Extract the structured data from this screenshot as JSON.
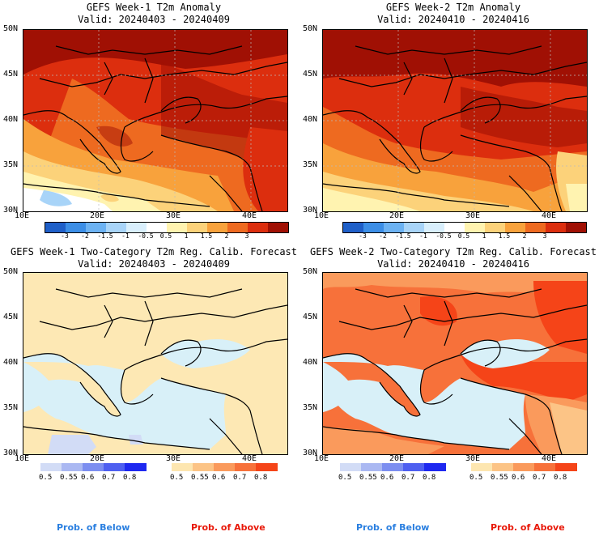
{
  "panels": [
    {
      "title_line1": "GEFS Week-1 T2m Anomaly",
      "title_line2": "Valid: 20240403 - 20240409"
    },
    {
      "title_line1": "GEFS Week-2 T2m Anomaly",
      "title_line2": "Valid: 20240410 - 20240416"
    },
    {
      "title_line1": "GEFS Week-1 Two-Category T2m Reg. Calib. Forecast",
      "title_line2": "Valid: 20240403 - 20240409"
    },
    {
      "title_line1": "GEFS Week-2 Two-Category T2m Reg. Calib. Forecast",
      "title_line2": "Valid: 20240410 - 20240416"
    }
  ],
  "lat_labels": [
    "50N",
    "45N",
    "40N",
    "35N",
    "30N"
  ],
  "lon_labels": [
    "10E",
    "20E",
    "30E",
    "40E"
  ],
  "anomaly_colorbar": {
    "labels": [
      "-3",
      "-2",
      "-1.5",
      "-1",
      "-0.5",
      "0.5",
      "1",
      "1.5",
      "2",
      "3"
    ],
    "colors": [
      "#1f5fc8",
      "#3c8ee6",
      "#6cb2f2",
      "#a8d4f8",
      "#d9effc",
      "#ffffff",
      "#fff3b0",
      "#fcd27a",
      "#f8a23c",
      "#ee6a20",
      "#dc2e0e",
      "#a01004"
    ]
  },
  "prob_colorbar": {
    "labels": [
      "0.5",
      "0.55",
      "0.6",
      "0.7",
      "0.8"
    ],
    "below_colors": [
      "#d2dcf6",
      "#aab8f2",
      "#7c8ef0",
      "#4e5ff0",
      "#1e28f0"
    ],
    "above_colors": [
      "#fde6b0",
      "#fcc486",
      "#fa9a5c",
      "#f7713a",
      "#f54418"
    ]
  },
  "legend": {
    "below": "Prob. of Below",
    "above": "Prob. of Above",
    "below_color": "#2a7fe0",
    "above_color": "#e81808"
  },
  "map_colors": {
    "ocean_light": "#d8f0f8",
    "land_beige": "#fde8b4",
    "coast": "#000000"
  }
}
